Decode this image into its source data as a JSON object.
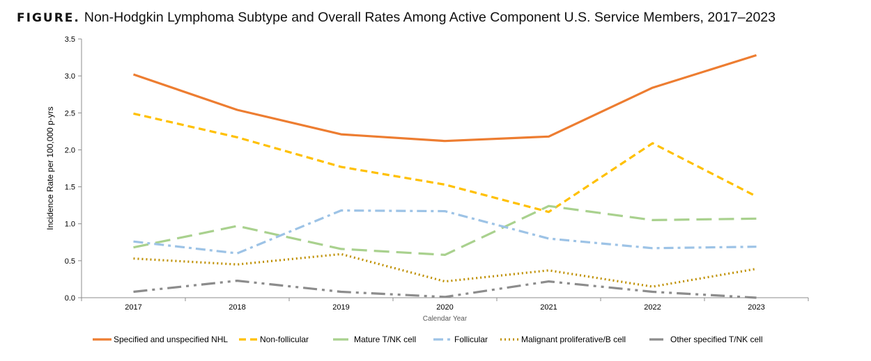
{
  "header": {
    "prefix": "FIGURE.",
    "title": "Non-Hodgkin Lymphoma Subtype and Overall Rates Among Active Component U.S. Service Members, 2017–2023"
  },
  "chart_data": {
    "type": "line",
    "title": "Non-Hodgkin Lymphoma Subtype and Overall Rates Among Active Component U.S. Service Members, 2017–2023",
    "xlabel": "Calendar Year",
    "ylabel": "Incidence Rate per 100,000 p-yrs",
    "ylim": [
      0,
      3.5
    ],
    "yticks": [
      "0.0",
      "0.5",
      "1.0",
      "1.5",
      "2.0",
      "2.5",
      "3.0",
      "3.5"
    ],
    "categories": [
      "2017",
      "2018",
      "2019",
      "2020",
      "2021",
      "2022",
      "2023"
    ],
    "grid": false,
    "legend_position": "bottom",
    "series": [
      {
        "name": "Specified and unspecified NHL",
        "color": "#ED7D31",
        "dash": "solid",
        "values": [
          3.02,
          2.54,
          2.21,
          2.12,
          2.18,
          2.84,
          3.28
        ]
      },
      {
        "name": "Non-follicular",
        "color": "#FFC000",
        "dash": "dash",
        "values": [
          2.49,
          2.17,
          1.77,
          1.53,
          1.16,
          2.09,
          1.37
        ]
      },
      {
        "name": "Mature T/NK cell",
        "color": "#A9D18E",
        "dash": "longdash",
        "values": [
          0.68,
          0.97,
          0.66,
          0.58,
          1.24,
          1.05,
          1.07
        ]
      },
      {
        "name": "Follicular",
        "color": "#9DC3E6",
        "dash": "dashdot",
        "values": [
          0.76,
          0.6,
          1.18,
          1.17,
          0.8,
          0.67,
          0.69
        ]
      },
      {
        "name": "Malignant proliferative/B cell",
        "color": "#BF9000",
        "dash": "dot",
        "values": [
          0.53,
          0.45,
          0.59,
          0.22,
          0.37,
          0.15,
          0.39
        ]
      },
      {
        "name": "Other specified T/NK cell",
        "color": "#8C8C8C",
        "dash": "longdashdotdot",
        "values": [
          0.08,
          0.23,
          0.08,
          0.01,
          0.22,
          0.08,
          0.0
        ]
      }
    ]
  }
}
